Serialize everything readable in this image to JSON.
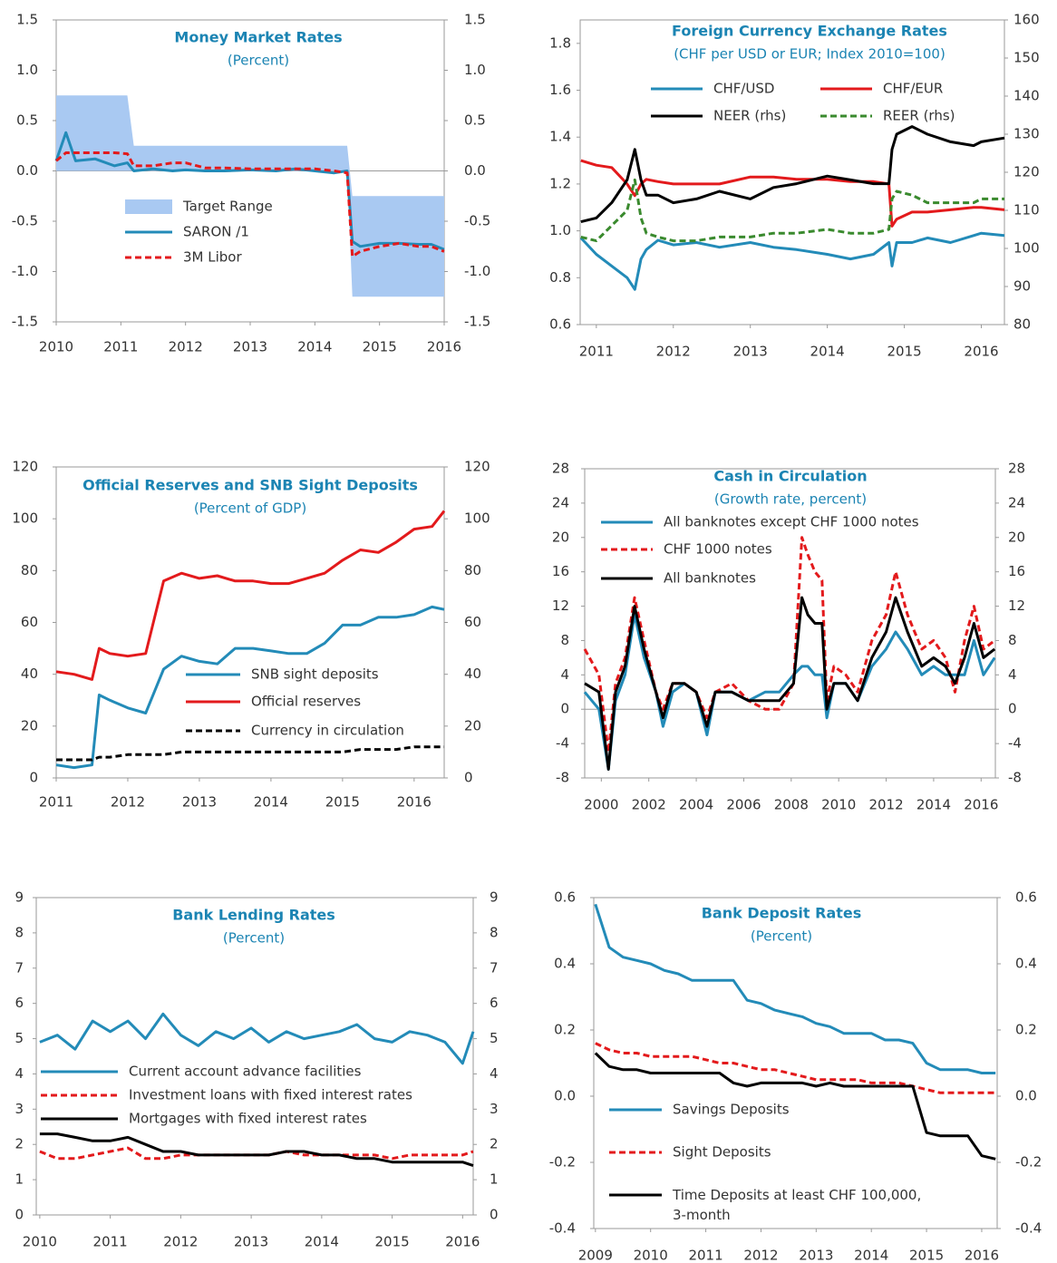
{
  "chart_data": [
    {
      "type": "line",
      "title": "Money Market Rates",
      "subtitle": "(Percent)",
      "x": [
        2010,
        2010.15,
        2010.3,
        2010.6,
        2010.9,
        2011.1,
        2011.2,
        2011.5,
        2011.8,
        2012,
        2012.3,
        2012.6,
        2013,
        2013.4,
        2013.7,
        2014,
        2014.3,
        2014.5,
        2014.58,
        2014.7,
        2015,
        2015.3,
        2015.6,
        2015.8,
        2016
      ],
      "xlim": [
        2010,
        2016
      ],
      "xticks": [
        2010,
        2011,
        2012,
        2013,
        2014,
        2015,
        2016
      ],
      "ylim": [
        -1.5,
        1.5
      ],
      "yticks": [
        1.5,
        {
          "value": 1,
          "label": "1.0"
        },
        0.5,
        {
          "value": 0,
          "label": "0.0"
        },
        -0.5,
        {
          "value": -1,
          "label": "-1.0"
        },
        -1.5
      ],
      "y2lim": [
        -1.5,
        1.5
      ],
      "y2ticks": [
        1.5,
        {
          "value": 1,
          "label": "1.0"
        },
        0.5,
        {
          "value": 0,
          "label": "0.0"
        },
        -0.5,
        {
          "value": -1,
          "label": "-1.0"
        },
        -1.5
      ],
      "zero_line": true,
      "series": [
        {
          "name": "Target Range",
          "kind": "band",
          "color": "#a9c9f2",
          "upper": [
            0.75,
            0.75,
            0.75,
            0.75,
            0.75,
            0.75,
            0.25,
            0.25,
            0.25,
            0.25,
            0.25,
            0.25,
            0.25,
            0.25,
            0.25,
            0.25,
            0.25,
            0.25,
            -0.25,
            -0.25,
            -0.25,
            -0.25,
            -0.25,
            -0.25,
            -0.25
          ],
          "lower": [
            0,
            0,
            0,
            0,
            0,
            0,
            0,
            0,
            0,
            0,
            0,
            0,
            0,
            0,
            0,
            0,
            0,
            0,
            -1.25,
            -1.25,
            -1.25,
            -1.25,
            -1.25,
            -1.25,
            -1.25
          ]
        },
        {
          "name": "SARON /1",
          "color": "#238bb8",
          "values": [
            0.1,
            0.38,
            0.1,
            0.12,
            0.05,
            0.08,
            0.0,
            0.02,
            0.0,
            0.01,
            0.0,
            0.0,
            0.01,
            0.0,
            0.02,
            0.0,
            -0.02,
            0.0,
            -0.7,
            -0.75,
            -0.72,
            -0.72,
            -0.73,
            -0.73,
            -0.78
          ]
        },
        {
          "name": "3M Libor",
          "color": "#e31a1c",
          "dashed": true,
          "values": [
            0.1,
            0.18,
            0.18,
            0.18,
            0.18,
            0.17,
            0.05,
            0.05,
            0.08,
            0.08,
            0.03,
            0.03,
            0.02,
            0.02,
            0.02,
            0.02,
            0.0,
            -0.02,
            -0.85,
            -0.8,
            -0.75,
            -0.72,
            -0.75,
            -0.75,
            -0.8
          ]
        }
      ]
    },
    {
      "type": "line",
      "title": "Foreign Currency Exchange Rates",
      "subtitle": "(CHF per USD or EUR; Index 2010=100)",
      "x": [
        2010.8,
        2011.0,
        2011.2,
        2011.4,
        2011.5,
        2011.58,
        2011.65,
        2011.8,
        2012.0,
        2012.3,
        2012.6,
        2013.0,
        2013.3,
        2013.6,
        2014.0,
        2014.3,
        2014.6,
        2014.8,
        2014.84,
        2014.9,
        2015.1,
        2015.3,
        2015.6,
        2015.9,
        2016.0,
        2016.3
      ],
      "xlim": [
        2010.79,
        2016.3
      ],
      "xticks": [
        2011,
        2012,
        2013,
        2014,
        2015,
        2016
      ],
      "ylim": [
        0.6,
        1.9
      ],
      "yticks": [
        0.6,
        0.8,
        {
          "value": 1,
          "label": "1.0"
        },
        1.2,
        1.4,
        1.6,
        1.8
      ],
      "y2lim": [
        80,
        160
      ],
      "y2ticks": [
        80,
        90,
        100,
        110,
        120,
        130,
        140,
        150,
        160
      ],
      "series": [
        {
          "name": "CHF/USD",
          "color": "#238bb8",
          "values": [
            0.97,
            0.9,
            0.85,
            0.8,
            0.75,
            0.88,
            0.92,
            0.96,
            0.94,
            0.95,
            0.93,
            0.95,
            0.93,
            0.92,
            0.9,
            0.88,
            0.9,
            0.95,
            0.85,
            0.95,
            0.95,
            0.97,
            0.95,
            0.98,
            0.99,
            0.98
          ]
        },
        {
          "name": "CHF/EUR",
          "color": "#e31a1c",
          "values": [
            1.3,
            1.28,
            1.27,
            1.2,
            1.15,
            1.2,
            1.22,
            1.21,
            1.2,
            1.2,
            1.2,
            1.23,
            1.23,
            1.22,
            1.22,
            1.21,
            1.21,
            1.2,
            1.02,
            1.05,
            1.08,
            1.08,
            1.09,
            1.1,
            1.1,
            1.09
          ]
        },
        {
          "name": "NEER (rhs)",
          "color": "#000000",
          "axis": "y2",
          "values": [
            107,
            108,
            112,
            118,
            126,
            118,
            114,
            114,
            112,
            113,
            115,
            113,
            116,
            117,
            119,
            118,
            117,
            117,
            126,
            130,
            132,
            130,
            128,
            127,
            128,
            129
          ]
        },
        {
          "name": "REER (rhs)",
          "color": "#3a8a2e",
          "dashed": true,
          "axis": "y2",
          "values": [
            103,
            102,
            106,
            110,
            118,
            108,
            104,
            103,
            102,
            102,
            103,
            103,
            104,
            104,
            105,
            104,
            104,
            105,
            113,
            115,
            114,
            112,
            112,
            112,
            113,
            113
          ]
        }
      ]
    },
    {
      "type": "line",
      "title": "Official Reserves and SNB Sight Deposits",
      "subtitle": "(Percent of GDP)",
      "x": [
        2011,
        2011.25,
        2011.5,
        2011.6,
        2011.75,
        2012,
        2012.25,
        2012.5,
        2012.75,
        2013,
        2013.25,
        2013.5,
        2013.75,
        2014,
        2014.25,
        2014.5,
        2014.75,
        2015,
        2015.25,
        2015.5,
        2015.75,
        2016,
        2016.25,
        2016.42
      ],
      "xlim": [
        2011,
        2016.42
      ],
      "xticks": [
        2011,
        2012,
        2013,
        2014,
        2015,
        2016
      ],
      "ylim": [
        0,
        120
      ],
      "yticks": [
        0,
        20,
        40,
        60,
        80,
        100,
        120
      ],
      "y2lim": [
        0,
        120
      ],
      "y2ticks": [
        0,
        20,
        40,
        60,
        80,
        100,
        120
      ],
      "series": [
        {
          "name": "SNB sight deposits",
          "color": "#238bb8",
          "values": [
            5,
            4,
            5,
            32,
            30,
            27,
            25,
            42,
            47,
            45,
            44,
            50,
            50,
            49,
            48,
            48,
            52,
            59,
            59,
            62,
            62,
            63,
            66,
            65
          ]
        },
        {
          "name": "Official reserves",
          "color": "#e31a1c",
          "values": [
            41,
            40,
            38,
            50,
            48,
            47,
            48,
            76,
            79,
            77,
            78,
            76,
            76,
            75,
            75,
            77,
            79,
            84,
            88,
            87,
            91,
            96,
            97,
            103
          ]
        },
        {
          "name": "Currency in circulation",
          "color": "#000000",
          "dashed": true,
          "values": [
            7,
            7,
            7,
            8,
            8,
            9,
            9,
            9,
            10,
            10,
            10,
            10,
            10,
            10,
            10,
            10,
            10,
            10,
            11,
            11,
            11,
            12,
            12,
            12
          ]
        }
      ]
    },
    {
      "type": "line",
      "title": "Cash in Circulation",
      "subtitle": "(Growth rate, percent)",
      "x": [
        1999.3,
        1999.9,
        2000.3,
        2000.6,
        2001.0,
        2001.4,
        2001.8,
        2002.3,
        2002.6,
        2003.0,
        2003.5,
        2004.0,
        2004.45,
        2004.8,
        2005.5,
        2006.2,
        2006.9,
        2007.5,
        2008.1,
        2008.45,
        2008.7,
        2009.0,
        2009.3,
        2009.5,
        2009.8,
        2010.3,
        2010.8,
        2011.4,
        2012.0,
        2012.4,
        2012.9,
        2013.5,
        2014.0,
        2014.5,
        2014.9,
        2015.3,
        2015.7,
        2016.1,
        2016.57
      ],
      "xlim": [
        1999.3,
        2016.6
      ],
      "xticks": [
        2000,
        2002,
        2004,
        2006,
        2008,
        2010,
        2012,
        2014,
        2016
      ],
      "ylim": [
        -8,
        28
      ],
      "yticks": [
        -8,
        -4,
        0,
        4,
        8,
        12,
        16,
        20,
        24,
        28
      ],
      "y2lim": [
        -8,
        28
      ],
      "y2ticks": [
        -8,
        -4,
        0,
        4,
        8,
        12,
        16,
        20,
        24,
        28
      ],
      "zero_line": true,
      "series": [
        {
          "name": "All banknotes except CHF 1000 notes",
          "color": "#238bb8",
          "values": [
            2,
            0,
            -7,
            1,
            4,
            11,
            6,
            2,
            -2,
            2,
            3,
            2,
            -3,
            2,
            2,
            1,
            2,
            2,
            4,
            5,
            5,
            4,
            4,
            -1,
            3,
            3,
            1,
            5,
            7,
            9,
            7,
            4,
            5,
            4,
            4,
            4,
            8,
            4,
            6
          ]
        },
        {
          "name": "CHF 1000 notes",
          "color": "#e31a1c",
          "dashed": true,
          "values": [
            7,
            4,
            -5,
            3,
            6,
            13,
            8,
            2,
            0,
            3,
            3,
            2,
            -1,
            2,
            3,
            1,
            0,
            0,
            3,
            20,
            18,
            16,
            15,
            1,
            5,
            4,
            2,
            8,
            11,
            16,
            11,
            7,
            8,
            6,
            2,
            8,
            12,
            7,
            8
          ]
        },
        {
          "name": "All banknotes",
          "color": "#000000",
          "values": [
            3,
            2,
            -7,
            2,
            5,
            12,
            7,
            2,
            -1,
            3,
            3,
            2,
            -2,
            2,
            2,
            1,
            1,
            1,
            3,
            13,
            11,
            10,
            10,
            0,
            3,
            3,
            1,
            6,
            9,
            13,
            9,
            5,
            6,
            5,
            3,
            6,
            10,
            6,
            7
          ]
        }
      ]
    },
    {
      "type": "line",
      "title": "Bank Lending Rates",
      "subtitle": "(Percent)",
      "x": [
        2010,
        2010.25,
        2010.5,
        2010.75,
        2011,
        2011.25,
        2011.5,
        2011.75,
        2012,
        2012.25,
        2012.5,
        2012.75,
        2013,
        2013.25,
        2013.5,
        2013.75,
        2014,
        2014.25,
        2014.5,
        2014.75,
        2015,
        2015.25,
        2015.5,
        2015.75,
        2016,
        2016.15
      ],
      "xlim": [
        2009.95,
        2016.15
      ],
      "xticks": [
        2010,
        2011,
        2012,
        2013,
        2014,
        2015,
        2016
      ],
      "ylim": [
        0,
        9
      ],
      "yticks": [
        0,
        1,
        2,
        3,
        4,
        5,
        6,
        7,
        8,
        9
      ],
      "y2lim": [
        0,
        9
      ],
      "y2ticks": [
        0,
        1,
        2,
        3,
        4,
        5,
        6,
        7,
        8,
        9
      ],
      "series": [
        {
          "name": "Current account advance facilities",
          "color": "#238bb8",
          "values": [
            4.9,
            5.1,
            4.7,
            5.5,
            5.2,
            5.5,
            5.0,
            5.7,
            5.1,
            4.8,
            5.2,
            5.0,
            5.3,
            4.9,
            5.2,
            5.0,
            5.1,
            5.2,
            5.4,
            5.0,
            4.9,
            5.2,
            5.1,
            4.9,
            4.3,
            5.2
          ]
        },
        {
          "name": "Investment loans with fixed interest rates",
          "color": "#e31a1c",
          "dashed": true,
          "values": [
            1.8,
            1.6,
            1.6,
            1.7,
            1.8,
            1.9,
            1.6,
            1.6,
            1.7,
            1.7,
            1.7,
            1.7,
            1.7,
            1.7,
            1.8,
            1.7,
            1.7,
            1.7,
            1.7,
            1.7,
            1.6,
            1.7,
            1.7,
            1.7,
            1.7,
            1.8
          ]
        },
        {
          "name": "Mortgages with fixed interest rates",
          "color": "#000000",
          "values": [
            2.3,
            2.3,
            2.2,
            2.1,
            2.1,
            2.2,
            2.0,
            1.8,
            1.8,
            1.7,
            1.7,
            1.7,
            1.7,
            1.7,
            1.8,
            1.8,
            1.7,
            1.7,
            1.6,
            1.6,
            1.5,
            1.5,
            1.5,
            1.5,
            1.5,
            1.4
          ]
        }
      ]
    },
    {
      "type": "line",
      "title": "Bank Deposit Rates",
      "subtitle": "(Percent)",
      "x": [
        2009,
        2009.25,
        2009.5,
        2009.75,
        2010,
        2010.25,
        2010.5,
        2010.75,
        2011,
        2011.25,
        2011.5,
        2011.75,
        2012,
        2012.25,
        2012.5,
        2012.75,
        2013,
        2013.25,
        2013.5,
        2013.75,
        2014,
        2014.25,
        2014.5,
        2014.75,
        2015,
        2015.25,
        2015.5,
        2015.75,
        2016,
        2016.25
      ],
      "xlim": [
        2008.97,
        2016.28
      ],
      "xticks": [
        2009,
        2010,
        2011,
        2012,
        2013,
        2014,
        2015,
        2016
      ],
      "ylim": [
        -0.4,
        0.6
      ],
      "yticks": [
        -0.4,
        -0.2,
        {
          "value": 0,
          "label": "0.0"
        },
        0.2,
        0.4,
        0.6
      ],
      "y2lim": [
        -0.4,
        0.6
      ],
      "y2ticks": [
        -0.4,
        -0.2,
        {
          "value": 0,
          "label": "0.0"
        },
        0.2,
        0.4,
        0.6
      ],
      "series": [
        {
          "name": "Savings Deposits",
          "color": "#238bb8",
          "values": [
            0.58,
            0.45,
            0.42,
            0.41,
            0.4,
            0.38,
            0.37,
            0.35,
            0.35,
            0.35,
            0.35,
            0.29,
            0.28,
            0.26,
            0.25,
            0.24,
            0.22,
            0.21,
            0.19,
            0.19,
            0.19,
            0.17,
            0.17,
            0.16,
            0.1,
            0.08,
            0.08,
            0.08,
            0.07,
            0.07
          ]
        },
        {
          "name": "Sight Deposits",
          "color": "#e31a1c",
          "dashed": true,
          "values": [
            0.16,
            0.14,
            0.13,
            0.13,
            0.12,
            0.12,
            0.12,
            0.12,
            0.11,
            0.1,
            0.1,
            0.09,
            0.08,
            0.08,
            0.07,
            0.06,
            0.05,
            0.05,
            0.05,
            0.05,
            0.04,
            0.04,
            0.04,
            0.03,
            0.02,
            0.01,
            0.01,
            0.01,
            0.01,
            0.01
          ]
        },
        {
          "name": "Time Deposits at least CHF 100,000, 3-month",
          "color": "#000000",
          "values": [
            0.13,
            0.09,
            0.08,
            0.08,
            0.07,
            0.07,
            0.07,
            0.07,
            0.07,
            0.07,
            0.04,
            0.03,
            0.04,
            0.04,
            0.04,
            0.04,
            0.03,
            0.04,
            0.03,
            0.03,
            0.03,
            0.03,
            0.03,
            0.03,
            -0.11,
            -0.12,
            -0.12,
            -0.12,
            -0.18,
            -0.19
          ]
        }
      ]
    }
  ]
}
